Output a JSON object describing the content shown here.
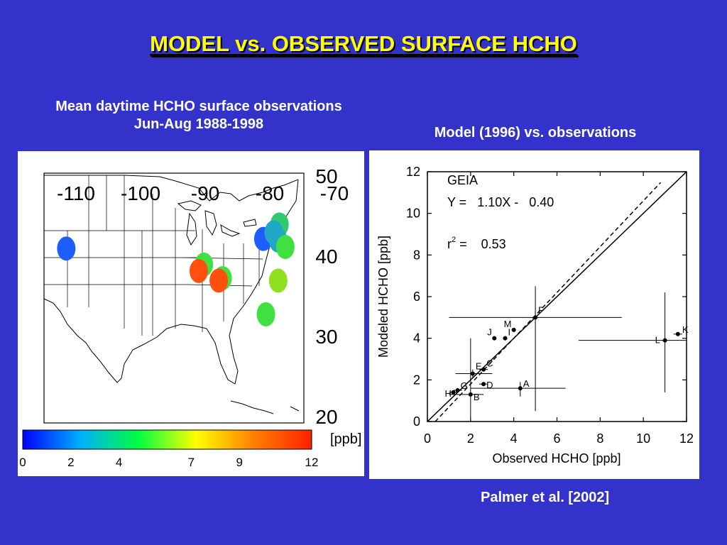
{
  "slide": {
    "title": "MODEL vs. OBSERVED SURFACE HCHO",
    "left_caption_line1": "Mean daytime HCHO surface observations",
    "left_caption_line2": "Jun-Aug 1988-1998",
    "right_caption": "Model (1996) vs. observations",
    "citation": "Palmer et al. [2002]"
  },
  "map": {
    "lon_labels": [
      "-110",
      "-100",
      "-90",
      "-80",
      "-70"
    ],
    "lat_labels": [
      "50",
      "40",
      "30",
      "20"
    ],
    "colorbar_unit": "[ppb]",
    "colorbar_ticks": [
      "0",
      "2",
      "4",
      "7",
      "9",
      "12"
    ],
    "colorbar_colors": [
      "#0000ff",
      "#00b0ff",
      "#00ff40",
      "#ffff00",
      "#ff8000",
      "#ff2000"
    ],
    "sites": [
      {
        "id": "utah",
        "lon": -111.5,
        "lat": 40.6,
        "color": "#1e5eff"
      },
      {
        "id": "lake-erie",
        "lon": -81.0,
        "lat": 41.8,
        "color": "#1e5eff"
      },
      {
        "id": "ny-north",
        "lon": -78.5,
        "lat": 43.6,
        "color": "#30c870"
      },
      {
        "id": "ny-mid",
        "lon": -79.4,
        "lat": 42.6,
        "color": "#20a8c8"
      },
      {
        "id": "pa",
        "lon": -78.7,
        "lat": 41.6,
        "color": "#20a8c8"
      },
      {
        "id": "pa-south",
        "lon": -77.6,
        "lat": 40.8,
        "color": "#40e040"
      },
      {
        "id": "illinois",
        "lon": -90.2,
        "lat": 38.6,
        "color": "#40e040"
      },
      {
        "id": "missouri",
        "lon": -91.0,
        "lat": 37.8,
        "color": "#ff5010"
      },
      {
        "id": "tennessee-a",
        "lon": -87.3,
        "lat": 36.9,
        "color": "#40e040"
      },
      {
        "id": "tennessee-b",
        "lon": -87.9,
        "lat": 36.6,
        "color": "#ff5010"
      },
      {
        "id": "virginia",
        "lon": -78.7,
        "lat": 36.6,
        "color": "#90e020"
      },
      {
        "id": "georgia",
        "lon": -80.6,
        "lat": 32.4,
        "color": "#40e040"
      }
    ]
  },
  "chart_data": {
    "type": "scatter",
    "xlabel": "Observed HCHO [ppb]",
    "ylabel": "Modeled HCHO [ppb]",
    "xlim": [
      0,
      12
    ],
    "ylim": [
      0,
      12
    ],
    "xticks": [
      0,
      2,
      4,
      6,
      8,
      10,
      12
    ],
    "yticks": [
      0,
      2,
      4,
      6,
      8,
      10,
      12
    ],
    "annotation": {
      "name": "GEIA",
      "equation": "Y =   1.10X -   0.40",
      "r2": "r",
      "r2_sup": "2",
      "r2_value": " =    0.53"
    },
    "one_to_one_line": {
      "slope": 1,
      "intercept": 0
    },
    "fit_line": {
      "slope": 1.1,
      "intercept": -0.4
    },
    "points": [
      {
        "label": "A",
        "x": 4.3,
        "y": 1.6,
        "xerr": [
          2.0,
          6.4
        ],
        "yerr": [
          1.2,
          1.9
        ]
      },
      {
        "label": "B",
        "x": 2.0,
        "y": 1.3,
        "xerr": [
          1.0,
          2.6
        ],
        "yerr": [
          0.2,
          4.0
        ]
      },
      {
        "label": "C",
        "x": 2.6,
        "y": 2.5,
        "xerr": [
          2.4,
          2.8
        ],
        "yerr": [
          2.4,
          2.6
        ]
      },
      {
        "label": "D",
        "x": 2.6,
        "y": 1.8,
        "xerr": [
          2.4,
          2.8
        ],
        "yerr": [
          1.7,
          1.9
        ]
      },
      {
        "label": "E",
        "x": 2.1,
        "y": 2.3,
        "xerr": [
          1.3,
          3.0
        ],
        "yerr": [
          2.1,
          2.5
        ]
      },
      {
        "label": "F",
        "x": 5.0,
        "y": 5.0,
        "xerr": [
          1.0,
          9.0
        ],
        "yerr": [
          0.5,
          6.5
        ]
      },
      {
        "label": "G",
        "x": 1.4,
        "y": 1.5,
        "xerr": [
          1.2,
          1.6
        ],
        "yerr": [
          1.4,
          1.6
        ]
      },
      {
        "label": "H",
        "x": 1.2,
        "y": 1.4,
        "xerr": [
          1.0,
          1.4
        ],
        "yerr": [
          1.3,
          1.5
        ]
      },
      {
        "label": "I",
        "x": 3.6,
        "y": 4.0,
        "xerr": [
          3.5,
          3.7
        ],
        "yerr": [
          3.9,
          4.1
        ]
      },
      {
        "label": "J",
        "x": 3.1,
        "y": 4.0,
        "xerr": [
          3.0,
          3.2
        ],
        "yerr": [
          3.9,
          4.1
        ]
      },
      {
        "label": "K",
        "x": 11.6,
        "y": 4.2,
        "xerr": [
          11.4,
          11.8
        ],
        "yerr": [
          4.1,
          4.3
        ]
      },
      {
        "label": "L",
        "x": 11.0,
        "y": 3.9,
        "xerr": [
          7.0,
          12.0
        ],
        "yerr": [
          1.4,
          6.2
        ]
      },
      {
        "label": "M",
        "x": 4.0,
        "y": 4.4,
        "xerr": [
          3.9,
          4.1
        ],
        "yerr": [
          4.3,
          4.5
        ]
      }
    ]
  }
}
